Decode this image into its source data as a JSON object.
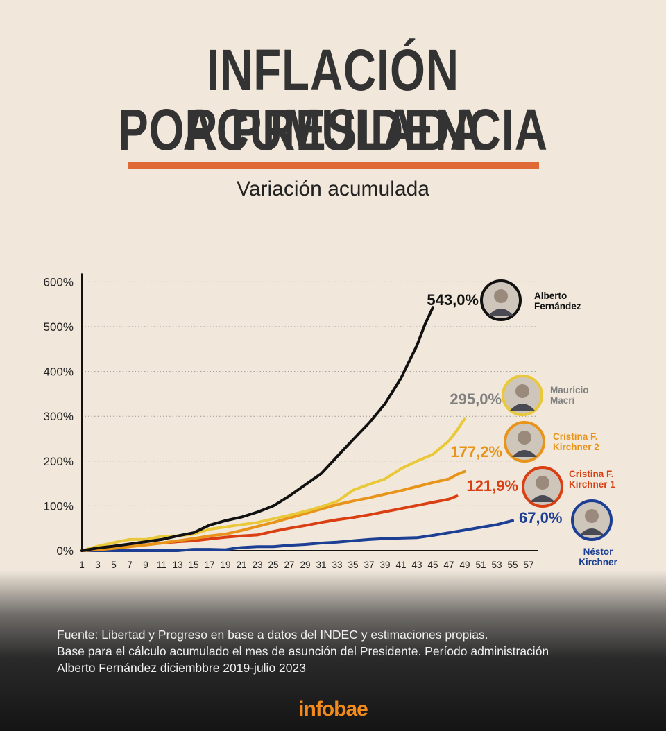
{
  "header": {
    "title_line1": "INFLACIÓN ACUMULADA",
    "title_line2": "POR PRESIDENCIA",
    "subtitle": "Variación acumulada"
  },
  "footer": {
    "source_line1": "Fuente: Libertad y Progreso en base a datos del INDEC y estimaciones propias.",
    "source_line2": "Base para el cálculo acumulado el mes de asunción del Presidente. Período administración",
    "source_line3": "Alberto Fernández diciembbre 2019-julio 2023",
    "logo": "infobae"
  },
  "colors": {
    "background": "#f1e8db",
    "accent": "#e06a36",
    "logo": "#f28a1c"
  },
  "chart_data": {
    "type": "line",
    "title": "INFLACIÓN ACUMULADA POR PRESIDENCIA",
    "subtitle": "Variación acumulada",
    "xlabel": "",
    "ylabel": "",
    "ylim": [
      0,
      600
    ],
    "xlim": [
      1,
      57
    ],
    "yticks": [
      0,
      100,
      200,
      300,
      400,
      500,
      600
    ],
    "ytick_labels": [
      "0%",
      "100%",
      "200%",
      "300%",
      "400%",
      "500%",
      "600%"
    ],
    "xticks": [
      1,
      3,
      5,
      7,
      9,
      11,
      13,
      15,
      17,
      19,
      21,
      23,
      25,
      27,
      29,
      31,
      33,
      35,
      37,
      39,
      41,
      43,
      45,
      47,
      49,
      51,
      53,
      55,
      57
    ],
    "grid": "horizontal dotted",
    "series": [
      {
        "name": "Néstor Kirchner",
        "end_label": "67,0%",
        "name_line1": "Néstor",
        "name_line2": "Kirchner",
        "color": "#1c3f94",
        "label_color": "#1c3f94",
        "points": [
          [
            1,
            0
          ],
          [
            5,
            0
          ],
          [
            9,
            0
          ],
          [
            13,
            0
          ],
          [
            15,
            3
          ],
          [
            17,
            3
          ],
          [
            19,
            2
          ],
          [
            20,
            5
          ],
          [
            21,
            7
          ],
          [
            23,
            9
          ],
          [
            25,
            9
          ],
          [
            27,
            12
          ],
          [
            29,
            14
          ],
          [
            31,
            17
          ],
          [
            33,
            19
          ],
          [
            35,
            22
          ],
          [
            37,
            25
          ],
          [
            39,
            27
          ],
          [
            41,
            28
          ],
          [
            43,
            29
          ],
          [
            45,
            34
          ],
          [
            47,
            40
          ],
          [
            49,
            46
          ],
          [
            51,
            52
          ],
          [
            53,
            58
          ],
          [
            55,
            67
          ]
        ]
      },
      {
        "name": "Cristina F. Kirchner 1",
        "end_label": "121,9%",
        "name_line1": "Cristina F.",
        "name_line2": "Kirchner 1",
        "color": "#d93f12",
        "label_color": "#d93f12",
        "points": [
          [
            1,
            0
          ],
          [
            3,
            3
          ],
          [
            5,
            6
          ],
          [
            7,
            9
          ],
          [
            9,
            13
          ],
          [
            11,
            17
          ],
          [
            13,
            20
          ],
          [
            15,
            22
          ],
          [
            17,
            26
          ],
          [
            19,
            30
          ],
          [
            21,
            33
          ],
          [
            23,
            35
          ],
          [
            25,
            43
          ],
          [
            27,
            50
          ],
          [
            29,
            56
          ],
          [
            31,
            63
          ],
          [
            33,
            69
          ],
          [
            35,
            74
          ],
          [
            37,
            80
          ],
          [
            39,
            87
          ],
          [
            41,
            94
          ],
          [
            43,
            101
          ],
          [
            45,
            108
          ],
          [
            47,
            115
          ],
          [
            48,
            122
          ]
        ]
      },
      {
        "name": "Cristina F. Kirchner 2",
        "end_label": "177,2%",
        "name_line1": "Cristina F.",
        "name_line2": "Kirchner 2",
        "color": "#e8941a",
        "label_color": "#e8941a",
        "points": [
          [
            1,
            0
          ],
          [
            3,
            2
          ],
          [
            5,
            5
          ],
          [
            7,
            9
          ],
          [
            9,
            13
          ],
          [
            11,
            17
          ],
          [
            13,
            22
          ],
          [
            15,
            27
          ],
          [
            17,
            33
          ],
          [
            19,
            37
          ],
          [
            21,
            45
          ],
          [
            23,
            54
          ],
          [
            25,
            63
          ],
          [
            27,
            73
          ],
          [
            29,
            83
          ],
          [
            31,
            93
          ],
          [
            33,
            103
          ],
          [
            35,
            111
          ],
          [
            37,
            118
          ],
          [
            39,
            126
          ],
          [
            41,
            134
          ],
          [
            43,
            143
          ],
          [
            45,
            152
          ],
          [
            47,
            160
          ],
          [
            48,
            170
          ],
          [
            49,
            177
          ]
        ]
      },
      {
        "name": "Mauricio Macri",
        "end_label": "295,0%",
        "name_line1": "Mauricio",
        "name_line2": "Macri",
        "color": "#e9c83a",
        "label_color": "#808080",
        "points": [
          [
            1,
            0
          ],
          [
            3,
            10
          ],
          [
            5,
            18
          ],
          [
            7,
            25
          ],
          [
            9,
            25
          ],
          [
            11,
            32
          ],
          [
            13,
            33
          ],
          [
            15,
            37
          ],
          [
            17,
            48
          ],
          [
            19,
            53
          ],
          [
            21,
            58
          ],
          [
            23,
            63
          ],
          [
            25,
            71
          ],
          [
            27,
            79
          ],
          [
            29,
            88
          ],
          [
            31,
            98
          ],
          [
            33,
            110
          ],
          [
            35,
            135
          ],
          [
            37,
            148
          ],
          [
            39,
            160
          ],
          [
            41,
            183
          ],
          [
            43,
            200
          ],
          [
            45,
            215
          ],
          [
            47,
            245
          ],
          [
            48,
            268
          ],
          [
            49,
            295
          ]
        ]
      },
      {
        "name": "Alberto Fernández",
        "end_label": "543,0%",
        "name_line1": "Alberto",
        "name_line2": "Fernández",
        "color": "#111111",
        "label_color": "#111111",
        "points": [
          [
            1,
            0
          ],
          [
            3,
            6
          ],
          [
            5,
            10
          ],
          [
            7,
            15
          ],
          [
            9,
            20
          ],
          [
            11,
            25
          ],
          [
            13,
            33
          ],
          [
            15,
            40
          ],
          [
            17,
            57
          ],
          [
            19,
            67
          ],
          [
            21,
            75
          ],
          [
            23,
            86
          ],
          [
            25,
            100
          ],
          [
            27,
            122
          ],
          [
            29,
            147
          ],
          [
            31,
            172
          ],
          [
            33,
            210
          ],
          [
            35,
            248
          ],
          [
            37,
            285
          ],
          [
            39,
            328
          ],
          [
            41,
            385
          ],
          [
            43,
            458
          ],
          [
            44,
            505
          ],
          [
            45,
            543
          ]
        ]
      }
    ]
  }
}
